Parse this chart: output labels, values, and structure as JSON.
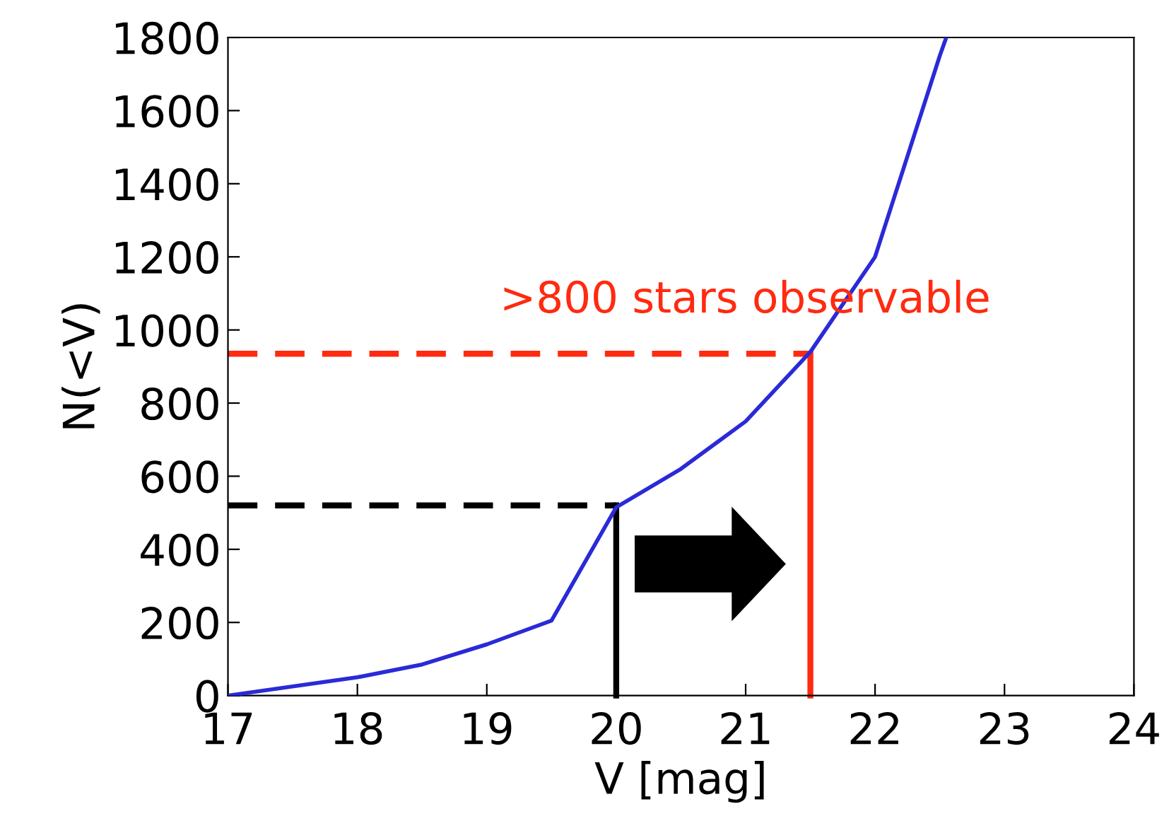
{
  "chart_data": {
    "type": "line",
    "xlabel": "V [mag]",
    "ylabel": "N(<V)",
    "xlim": [
      17,
      24
    ],
    "xticks": [
      17,
      18,
      19,
      20,
      21,
      22,
      23,
      24
    ],
    "ylim": [
      0,
      1800
    ],
    "yticks": [
      0,
      200,
      400,
      600,
      800,
      1000,
      1200,
      1400,
      1600,
      1800
    ],
    "grid": false,
    "legend": false,
    "marker": "none",
    "series": [
      {
        "color": "#2a2ad8",
        "x": [
          17,
          18,
          18.5,
          19,
          19.5,
          20,
          20.5,
          21,
          21.5,
          22,
          22.5,
          22.55
        ],
        "values": [
          0,
          50,
          85,
          140,
          205,
          515,
          620,
          750,
          940,
          1200,
          1750,
          1800
        ],
        "line_style": "solid"
      },
      {
        "color": "#000000",
        "x": [
          17,
          20
        ],
        "values": [
          520,
          520
        ],
        "line_style": "dashed"
      },
      {
        "color": "#000000",
        "x": [
          20,
          20
        ],
        "values": [
          0,
          520
        ],
        "line_style": "solid"
      },
      {
        "color": "#ff2a10",
        "x": [
          17,
          21.5
        ],
        "values": [
          935,
          935
        ],
        "line_style": "dashed"
      },
      {
        "color": "#ff2a10",
        "x": [
          21.5,
          21.5
        ],
        "values": [
          0,
          935
        ],
        "line_style": "solid"
      }
    ],
    "annotations": [
      ">800 stars observable"
    ]
  }
}
